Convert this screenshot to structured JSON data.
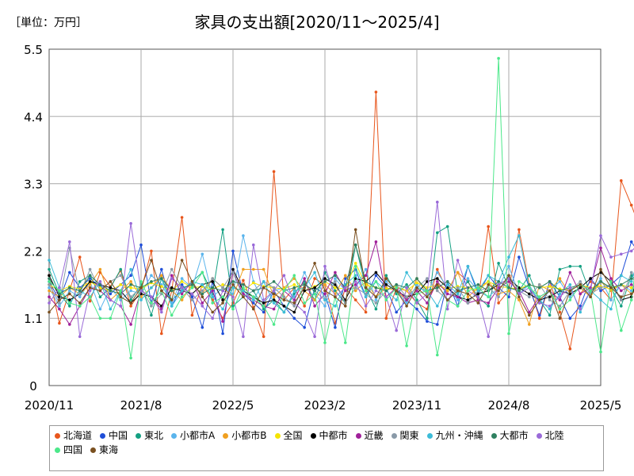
{
  "unit_label": "［単位：万円］",
  "chart_data": {
    "type": "line",
    "title": "家具の支出額[2020/11～2025/4]",
    "ylim": [
      0,
      5.5
    ],
    "y_ticks": [
      "0",
      "1.1",
      "2.2",
      "3.3",
      "4.4",
      "5.5"
    ],
    "x_ticks": [
      "2020/11",
      "2021/8",
      "2022/5",
      "2023/2",
      "2023/11",
      "2024/8",
      "2025/5"
    ],
    "x_start": "2020/11",
    "x_end": "2025/5",
    "grid": true,
    "legend_position": "bottom",
    "series": [
      {
        "name": "北海道",
        "color": "#e8561c",
        "values": [
          1.8,
          1.02,
          1.55,
          2.1,
          1.38,
          1.85,
          1.62,
          1.88,
          1.3,
          1.55,
          2.2,
          0.85,
          1.55,
          2.75,
          1.15,
          1.65,
          1.4,
          1.1,
          1.35,
          1.72,
          1.28,
          0.8,
          3.5,
          1.4,
          1.6,
          1.3,
          1.75,
          1.65,
          1.02,
          1.6,
          1.4,
          1.2,
          4.8,
          1.1,
          1.6,
          1.55,
          1.35,
          1.25,
          1.9,
          1.55,
          1.85,
          1.7,
          1.4,
          2.6,
          1.35,
          1.55,
          2.55,
          1.65,
          1.1,
          1.7,
          1.2,
          0.6,
          1.5,
          1.7,
          1.6,
          1.4,
          3.35,
          2.95,
          2.5,
          2.75
        ]
      },
      {
        "name": "中国",
        "color": "#1f4ed8",
        "values": [
          1.7,
          1.4,
          1.85,
          1.6,
          1.75,
          1.62,
          1.5,
          1.65,
          1.8,
          2.3,
          1.35,
          1.9,
          1.3,
          1.65,
          1.45,
          0.95,
          1.7,
          0.85,
          2.2,
          1.5,
          1.35,
          1.2,
          1.55,
          1.3,
          1.1,
          0.95,
          1.6,
          1.5,
          0.95,
          1.75,
          1.9,
          1.45,
          1.8,
          1.6,
          1.2,
          1.4,
          1.25,
          1.05,
          1.0,
          1.7,
          1.3,
          1.95,
          1.5,
          1.8,
          1.6,
          1.45,
          2.1,
          1.6,
          1.15,
          1.7,
          1.45,
          1.1,
          1.3,
          1.75,
          1.55,
          1.65,
          1.8,
          2.35,
          2.1,
          2.05
        ]
      },
      {
        "name": "東北",
        "color": "#14a082",
        "values": [
          1.9,
          1.5,
          1.3,
          1.7,
          1.8,
          1.45,
          1.6,
          1.9,
          1.4,
          1.65,
          1.15,
          1.75,
          1.4,
          1.55,
          1.7,
          1.85,
          1.5,
          2.55,
          1.3,
          1.45,
          1.55,
          1.25,
          1.4,
          1.2,
          1.5,
          1.7,
          1.4,
          1.85,
          1.55,
          1.35,
          2.3,
          1.6,
          1.25,
          1.8,
          1.5,
          1.65,
          1.4,
          1.1,
          2.5,
          2.6,
          1.5,
          1.7,
          1.45,
          1.3,
          2.0,
          1.6,
          1.55,
          1.8,
          1.4,
          1.15,
          1.9,
          1.95,
          1.95,
          1.5,
          1.7,
          1.6,
          1.3,
          1.8,
          1.65,
          1.55
        ]
      },
      {
        "name": "小都市A",
        "color": "#5ab4ec",
        "values": [
          1.6,
          1.3,
          1.55,
          1.45,
          1.7,
          1.25,
          1.6,
          1.4,
          1.55,
          1.5,
          1.8,
          1.65,
          1.35,
          1.75,
          1.6,
          2.15,
          1.45,
          1.6,
          1.5,
          2.45,
          1.7,
          1.35,
          1.55,
          1.6,
          1.45,
          1.85,
          1.5,
          1.3,
          1.75,
          1.55,
          1.6,
          1.9,
          1.4,
          1.7,
          1.55,
          1.35,
          1.65,
          1.5,
          1.85,
          1.6,
          1.4,
          1.75,
          1.55,
          1.45,
          1.6,
          1.95,
          1.5,
          1.65,
          1.35,
          1.55,
          1.7,
          1.45,
          1.6,
          1.5,
          1.75,
          1.4,
          1.65,
          1.55,
          1.8,
          1.6
        ]
      },
      {
        "name": "小都市B",
        "color": "#f0a020",
        "values": [
          1.55,
          1.45,
          1.6,
          1.5,
          1.65,
          1.9,
          1.4,
          1.55,
          1.7,
          1.45,
          1.6,
          1.8,
          1.55,
          1.4,
          1.65,
          1.5,
          1.75,
          1.6,
          1.45,
          1.9,
          1.9,
          1.9,
          1.45,
          1.6,
          1.75,
          1.55,
          1.4,
          1.65,
          1.5,
          1.8,
          1.55,
          1.7,
          1.45,
          1.6,
          1.55,
          1.4,
          1.75,
          1.5,
          1.65,
          1.55,
          1.85,
          1.45,
          1.6,
          1.7,
          1.5,
          1.55,
          1.4,
          1.0,
          1.65,
          1.55,
          1.75,
          1.5,
          1.6,
          1.45,
          1.7,
          1.55,
          1.65,
          1.5,
          1.6,
          1.7
        ]
      },
      {
        "name": "全国",
        "color": "#f5e400",
        "values": [
          1.65,
          1.55,
          1.62,
          1.58,
          1.7,
          1.6,
          1.55,
          1.65,
          1.6,
          1.58,
          1.68,
          1.62,
          1.55,
          1.7,
          1.6,
          1.62,
          1.58,
          1.65,
          1.6,
          1.55,
          1.68,
          1.62,
          1.6,
          1.58,
          1.65,
          1.55,
          1.62,
          1.7,
          1.6,
          1.58,
          2.0,
          1.65,
          1.6,
          1.58,
          1.62,
          1.55,
          1.68,
          1.6,
          1.65,
          1.58,
          1.62,
          1.6,
          1.55,
          1.7,
          1.62,
          1.6,
          1.58,
          1.65,
          1.6,
          1.62,
          1.58,
          1.55,
          1.65,
          1.6,
          1.62,
          1.58,
          1.65,
          1.6,
          1.7,
          1.62
        ]
      },
      {
        "name": "中都市",
        "color": "#000000",
        "values": [
          1.8,
          1.45,
          1.4,
          1.5,
          1.7,
          1.65,
          1.6,
          1.55,
          1.35,
          1.5,
          1.45,
          1.3,
          1.6,
          1.55,
          1.5,
          1.65,
          1.7,
          1.4,
          1.9,
          1.55,
          1.45,
          1.35,
          1.4,
          1.3,
          1.2,
          1.55,
          1.6,
          1.75,
          1.65,
          1.4,
          1.75,
          1.7,
          1.85,
          1.65,
          1.55,
          1.45,
          1.5,
          1.7,
          1.75,
          1.6,
          1.45,
          1.4,
          1.5,
          1.55,
          1.65,
          1.75,
          1.6,
          1.5,
          1.4,
          1.45,
          1.55,
          1.5,
          1.6,
          1.75,
          1.85,
          1.7,
          1.4,
          1.45,
          1.95,
          1.65
        ]
      },
      {
        "name": "近畿",
        "color": "#a0209a",
        "values": [
          1.45,
          1.25,
          1.0,
          1.3,
          1.6,
          1.55,
          1.4,
          1.3,
          1.0,
          1.55,
          1.45,
          1.25,
          1.8,
          1.5,
          1.7,
          1.35,
          1.55,
          1.05,
          1.85,
          1.5,
          1.4,
          1.3,
          1.25,
          1.55,
          1.4,
          1.75,
          1.3,
          1.5,
          1.85,
          1.55,
          1.65,
          1.8,
          2.35,
          1.45,
          1.6,
          1.4,
          1.55,
          1.35,
          1.7,
          1.5,
          1.45,
          1.35,
          1.4,
          1.35,
          1.6,
          1.7,
          1.55,
          1.2,
          1.45,
          1.55,
          1.4,
          1.85,
          1.5,
          1.6,
          2.25,
          1.75,
          1.55,
          1.65,
          1.55,
          1.6
        ]
      },
      {
        "name": "関東",
        "color": "#8a9aa8",
        "values": [
          1.65,
          1.35,
          2.25,
          1.5,
          1.9,
          1.55,
          1.7,
          1.8,
          1.45,
          1.6,
          1.3,
          1.5,
          1.9,
          1.6,
          1.4,
          1.55,
          1.75,
          1.6,
          1.85,
          1.45,
          1.55,
          1.7,
          1.6,
          1.45,
          1.3,
          1.65,
          1.55,
          1.4,
          1.7,
          1.35,
          1.6,
          1.5,
          1.35,
          1.55,
          1.65,
          1.45,
          1.6,
          1.75,
          1.55,
          1.4,
          1.6,
          1.35,
          1.55,
          1.6,
          1.45,
          1.8,
          1.55,
          1.45,
          1.65,
          1.4,
          1.3,
          1.55,
          1.7,
          1.5,
          1.6,
          1.65,
          1.4,
          1.85,
          1.65,
          1.55
        ]
      },
      {
        "name": "九州・沖縄",
        "color": "#3cbcd8",
        "values": [
          2.05,
          1.6,
          1.35,
          1.55,
          1.45,
          1.7,
          1.25,
          1.55,
          1.9,
          1.4,
          1.6,
          1.75,
          1.3,
          1.55,
          1.7,
          1.65,
          1.45,
          1.25,
          1.6,
          1.55,
          1.4,
          1.7,
          1.35,
          1.2,
          1.55,
          1.6,
          1.85,
          1.4,
          1.3,
          1.65,
          1.8,
          1.45,
          1.7,
          1.55,
          1.4,
          1.85,
          1.6,
          1.55,
          1.3,
          1.65,
          1.5,
          1.95,
          1.55,
          1.8,
          1.7,
          2.1,
          2.45,
          1.6,
          1.4,
          1.25,
          1.5,
          1.65,
          1.2,
          1.55,
          1.4,
          1.25,
          1.8,
          1.7,
          2.25,
          1.6
        ]
      },
      {
        "name": "大都市",
        "color": "#2e8060",
        "values": [
          1.75,
          1.5,
          1.6,
          1.55,
          1.8,
          1.65,
          1.55,
          1.5,
          1.65,
          1.6,
          1.7,
          1.75,
          1.55,
          1.6,
          1.65,
          1.5,
          1.6,
          1.55,
          1.7,
          1.65,
          1.55,
          1.6,
          1.7,
          1.55,
          1.6,
          1.65,
          1.55,
          1.7,
          1.8,
          1.6,
          2.3,
          1.7,
          1.6,
          1.55,
          1.65,
          1.6,
          1.75,
          1.55,
          1.6,
          1.7,
          1.55,
          1.6,
          1.65,
          1.55,
          1.7,
          1.6,
          1.55,
          1.65,
          1.6,
          1.7,
          1.55,
          1.6,
          1.65,
          1.55,
          1.7,
          1.6,
          1.65,
          1.75,
          1.7,
          1.65
        ]
      },
      {
        "name": "北陸",
        "color": "#9a6ad8",
        "values": [
          1.35,
          1.6,
          2.35,
          0.8,
          1.55,
          1.7,
          1.4,
          1.3,
          2.65,
          1.55,
          1.45,
          1.2,
          1.75,
          1.6,
          1.5,
          1.3,
          1.1,
          1.55,
          1.45,
          0.8,
          2.3,
          1.4,
          1.55,
          1.8,
          1.35,
          1.2,
          0.8,
          1.95,
          1.45,
          1.6,
          1.7,
          1.3,
          1.55,
          1.45,
          0.9,
          1.6,
          1.35,
          1.5,
          3.0,
          1.25,
          2.05,
          1.55,
          1.45,
          0.8,
          1.65,
          1.75,
          1.5,
          1.6,
          1.35,
          1.3,
          1.45,
          1.6,
          1.25,
          1.55,
          2.45,
          2.1,
          2.15,
          2.2,
          2.35,
          1.6
        ]
      },
      {
        "name": "四国",
        "color": "#4ce88a",
        "values": [
          1.7,
          1.55,
          1.35,
          1.3,
          1.45,
          1.1,
          1.1,
          1.55,
          0.45,
          1.7,
          1.35,
          1.55,
          1.15,
          1.45,
          1.6,
          1.85,
          1.35,
          1.45,
          1.25,
          1.6,
          1.45,
          1.3,
          1.0,
          1.55,
          1.8,
          1.35,
          1.5,
          0.7,
          1.45,
          0.7,
          1.95,
          1.55,
          1.7,
          1.4,
          1.6,
          0.65,
          1.5,
          1.55,
          0.5,
          1.4,
          1.3,
          1.55,
          1.6,
          1.45,
          5.35,
          0.85,
          1.7,
          1.6,
          1.45,
          1.55,
          1.25,
          1.4,
          1.65,
          1.55,
          0.55,
          1.7,
          0.9,
          1.4,
          2.65,
          1.55
        ]
      },
      {
        "name": "東海",
        "color": "#7a5020",
        "values": [
          1.2,
          1.4,
          1.5,
          1.35,
          1.6,
          1.55,
          1.7,
          1.45,
          1.35,
          1.6,
          2.05,
          1.55,
          1.4,
          2.05,
          1.7,
          1.45,
          1.2,
          1.35,
          1.65,
          1.45,
          1.25,
          1.6,
          1.5,
          1.4,
          1.35,
          1.6,
          2.0,
          1.55,
          1.45,
          1.3,
          2.55,
          1.6,
          1.45,
          1.75,
          1.55,
          1.3,
          1.6,
          1.45,
          1.65,
          1.4,
          1.55,
          1.5,
          1.35,
          1.65,
          1.55,
          1.8,
          1.45,
          1.15,
          1.4,
          1.55,
          1.1,
          1.55,
          1.65,
          1.45,
          1.9,
          1.6,
          1.45,
          1.5,
          1.65,
          1.5
        ]
      }
    ]
  }
}
